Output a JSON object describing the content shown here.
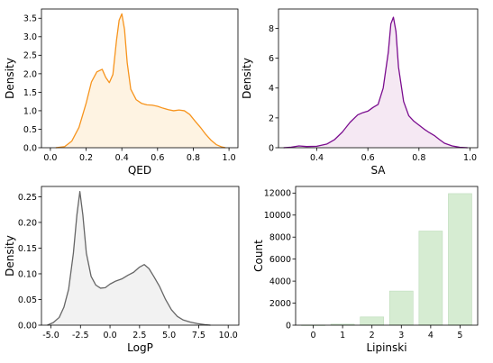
{
  "chart_data": [
    {
      "type": "area",
      "xlabel": "QED",
      "ylabel": "Density",
      "xlim": [
        -0.05,
        1.05
      ],
      "ylim": [
        0,
        3.75
      ],
      "xticks": [
        "0.0",
        "0.2",
        "0.4",
        "0.6",
        "0.8",
        "1.0"
      ],
      "xtick_values": [
        0.0,
        0.2,
        0.4,
        0.6,
        0.8,
        1.0
      ],
      "yticks": [
        "0.0",
        "0.5",
        "1.0",
        "1.5",
        "2.0",
        "2.5",
        "3.0",
        "3.5"
      ],
      "ytick_values": [
        0,
        0.5,
        1.0,
        1.5,
        2.0,
        2.5,
        3.0,
        3.5
      ],
      "line_color": "#f7941d",
      "fill_color": "#fef3e2",
      "x": [
        0.03,
        0.08,
        0.12,
        0.16,
        0.2,
        0.23,
        0.26,
        0.29,
        0.31,
        0.33,
        0.35,
        0.37,
        0.385,
        0.4,
        0.415,
        0.43,
        0.45,
        0.48,
        0.51,
        0.54,
        0.57,
        0.6,
        0.63,
        0.66,
        0.69,
        0.72,
        0.75,
        0.78,
        0.81,
        0.84,
        0.87,
        0.9,
        0.93,
        0.96,
        0.98
      ],
      "y": [
        0.0,
        0.03,
        0.18,
        0.55,
        1.2,
        1.78,
        2.05,
        2.12,
        1.9,
        1.76,
        1.98,
        2.9,
        3.45,
        3.62,
        3.2,
        2.3,
        1.58,
        1.3,
        1.2,
        1.16,
        1.15,
        1.12,
        1.07,
        1.03,
        1.0,
        1.02,
        1.0,
        0.9,
        0.72,
        0.55,
        0.36,
        0.2,
        0.08,
        0.02,
        0.0
      ]
    },
    {
      "type": "area",
      "xlabel": "SA",
      "ylabel": "Density",
      "xlim": [
        0.25,
        1.03
      ],
      "ylim": [
        0,
        9.3
      ],
      "xticks": [
        "0.4",
        "0.6",
        "0.8",
        "1.0"
      ],
      "xtick_values": [
        0.4,
        0.6,
        0.8,
        1.0
      ],
      "yticks": [
        "0",
        "2",
        "4",
        "6",
        "8"
      ],
      "ytick_values": [
        0,
        2,
        4,
        6,
        8
      ],
      "line_color": "#7b0d8f",
      "fill_color": "#f5e8f3",
      "x": [
        0.27,
        0.3,
        0.33,
        0.36,
        0.4,
        0.44,
        0.47,
        0.5,
        0.53,
        0.56,
        0.58,
        0.6,
        0.62,
        0.64,
        0.66,
        0.68,
        0.69,
        0.7,
        0.71,
        0.72,
        0.74,
        0.76,
        0.78,
        0.8,
        0.82,
        0.84,
        0.86,
        0.88,
        0.9,
        0.93,
        0.96,
        0.99
      ],
      "y": [
        0.0,
        0.04,
        0.12,
        0.08,
        0.1,
        0.25,
        0.55,
        1.05,
        1.7,
        2.2,
        2.35,
        2.45,
        2.7,
        2.9,
        4.0,
        6.4,
        8.3,
        8.75,
        7.8,
        5.4,
        3.1,
        2.15,
        1.78,
        1.52,
        1.25,
        1.02,
        0.82,
        0.55,
        0.3,
        0.12,
        0.03,
        0.0
      ]
    },
    {
      "type": "area",
      "xlabel": "LogP",
      "ylabel": "Density",
      "xlim": [
        -5.8,
        10.9
      ],
      "ylim": [
        0,
        0.27
      ],
      "xticks": [
        "-5.0",
        "-2.5",
        "0.0",
        "2.5",
        "5.0",
        "7.5",
        "10.0"
      ],
      "xtick_values": [
        -5.0,
        -2.5,
        0.0,
        2.5,
        5.0,
        7.5,
        10.0
      ],
      "yticks": [
        "0.00",
        "0.05",
        "0.10",
        "0.15",
        "0.20",
        "0.25"
      ],
      "ytick_values": [
        0,
        0.05,
        0.1,
        0.15,
        0.2,
        0.25
      ],
      "line_color": "#666666",
      "fill_color": "#f2f2f2",
      "x": [
        -5.3,
        -4.8,
        -4.3,
        -3.9,
        -3.5,
        -3.1,
        -2.8,
        -2.55,
        -2.3,
        -2.0,
        -1.6,
        -1.2,
        -0.8,
        -0.4,
        0.0,
        0.5,
        1.0,
        1.5,
        2.0,
        2.5,
        2.9,
        3.3,
        3.7,
        4.2,
        4.7,
        5.2,
        5.7,
        6.2,
        6.8,
        7.4,
        8.0,
        8.5
      ],
      "y": [
        0.0,
        0.005,
        0.015,
        0.035,
        0.07,
        0.14,
        0.215,
        0.26,
        0.215,
        0.14,
        0.095,
        0.078,
        0.072,
        0.073,
        0.08,
        0.086,
        0.09,
        0.097,
        0.103,
        0.113,
        0.118,
        0.11,
        0.095,
        0.075,
        0.05,
        0.03,
        0.017,
        0.01,
        0.006,
        0.003,
        0.001,
        0.0
      ]
    },
    {
      "type": "bar",
      "xlabel": "Lipinski",
      "ylabel": "Count",
      "categories": [
        "0",
        "1",
        "2",
        "3",
        "4",
        "5"
      ],
      "values": [
        15,
        90,
        750,
        3100,
        8550,
        11950
      ],
      "xlim": [
        -0.6,
        5.6
      ],
      "ylim": [
        0,
        12600
      ],
      "yticks": [
        "0",
        "2000",
        "4000",
        "6000",
        "8000",
        "10000",
        "12000"
      ],
      "ytick_values": [
        0,
        2000,
        4000,
        6000,
        8000,
        10000,
        12000
      ],
      "bar_color": "#d6ecd2",
      "bar_edge_color": "#bfdcbb"
    }
  ]
}
